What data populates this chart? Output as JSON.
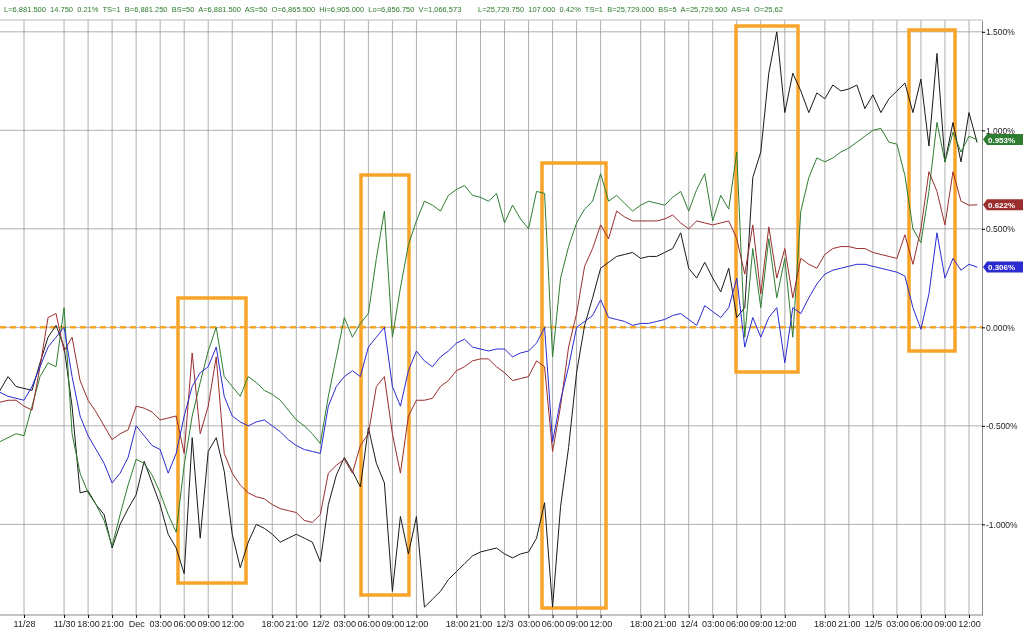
{
  "chart_data": {
    "type": "line",
    "annotations": [
      "L=6,881.500  14.750  0.21%  TS=1  B=6,881.250  BS=50  A=6,881.500  AS=50  O=6,865.500  Hi=6,905.000  Lo=6,856.750  V=1,066,573",
      "L=25,729.750  107.000  0.42%  TS=1  B=25,729.000  BS=5  A=25,729.500  AS=4  O=25,62"
    ],
    "categories": [
      null,
      null,
      null,
      "11/28",
      null,
      null,
      null,
      null,
      "11/30",
      null,
      null,
      "18:00",
      null,
      null,
      "21:00",
      null,
      null,
      "Dec",
      null,
      null,
      "03:00",
      null,
      null,
      "06:00",
      null,
      null,
      "09:00",
      null,
      null,
      "12:00",
      null,
      null,
      null,
      null,
      "18:00",
      null,
      null,
      "21:00",
      null,
      null,
      "12/2",
      null,
      null,
      "03:00",
      null,
      null,
      "06:00",
      null,
      null,
      "09:00",
      null,
      null,
      "12:00",
      null,
      null,
      null,
      null,
      "18:00",
      null,
      null,
      "21:00",
      null,
      null,
      "12/3",
      null,
      null,
      "03:00",
      null,
      null,
      "06:00",
      null,
      null,
      "09:00",
      null,
      null,
      "12:00",
      null,
      null,
      null,
      null,
      "18:00",
      null,
      null,
      "21:00",
      null,
      null,
      "12/4",
      null,
      null,
      "03:00",
      null,
      null,
      "06:00",
      null,
      null,
      "09:00",
      null,
      null,
      "12:00",
      null,
      null,
      null,
      null,
      "18:00",
      null,
      null,
      "21:00",
      null,
      null,
      "12/5",
      null,
      null,
      "03:00",
      null,
      null,
      "06:00",
      null,
      null,
      "09:00",
      null,
      null,
      "12:00",
      null
    ],
    "ylim": [
      -1.46,
      1.56
    ],
    "yticks": [
      {
        "value": 1.5,
        "label": "1.500%"
      },
      {
        "value": 1,
        "label": "1.000%"
      },
      {
        "value": 0.5,
        "label": "0.500%"
      },
      {
        "value": 0,
        "label": "0.000%"
      },
      {
        "value": -0.5,
        "label": "-0.500%"
      },
      {
        "value": -1,
        "label": "-1.000%"
      }
    ],
    "grid": true,
    "ref_lines": [
      {
        "axis": "y",
        "value": 0,
        "color": "#f5a623",
        "line_style": "dashed"
      }
    ],
    "series": [
      {
        "color": "#1a1a1a",
        "values": [
          -0.32,
          -0.25,
          -0.3,
          -0.31,
          -0.32,
          -0.18,
          -0.05,
          0.01,
          -0.1,
          -0.4,
          -0.84,
          -0.83,
          -0.9,
          -0.95,
          -1.12,
          -1.0,
          -0.92,
          -0.85,
          -0.68,
          -0.79,
          -0.9,
          -1.05,
          -1.12,
          -1.25,
          -0.56,
          -1.07,
          -0.63,
          -0.56,
          -0.73,
          -1.05,
          -1.22,
          -1.09,
          -1.0,
          -1.02,
          -1.05,
          -1.09,
          -1.07,
          -1.05,
          -1.07,
          -1.09,
          -1.19,
          -0.9,
          -0.75,
          -0.66,
          -0.73,
          -0.81,
          -0.51,
          -0.69,
          -0.79,
          -1.34,
          -0.96,
          -1.15,
          -0.96,
          -1.42,
          -1.38,
          -1.34,
          -1.28,
          -1.24,
          -1.2,
          -1.16,
          -1.14,
          -1.13,
          -1.12,
          -1.15,
          -1.17,
          -1.15,
          -1.14,
          -1.07,
          -0.89,
          -1.42,
          -0.91,
          -0.61,
          -0.23,
          0.01,
          0.15,
          0.3,
          0.33,
          0.36,
          0.37,
          0.38,
          0.35,
          0.36,
          0.36,
          0.38,
          0.4,
          0.48,
          0.3,
          0.25,
          0.33,
          0.25,
          0.18,
          0.3,
          0.05,
          0.1,
          0.76,
          0.89,
          1.29,
          1.5,
          1.09,
          1.29,
          1.2,
          1.09,
          1.19,
          1.16,
          1.23,
          1.2,
          1.21,
          1.23,
          1.11,
          1.18,
          1.09,
          1.16,
          1.2,
          1.24,
          1.09,
          1.26,
          0.92,
          1.39,
          0.84,
          1.04,
          0.84,
          1.09,
          0.94
        ]
      },
      {
        "color": "#2e7d32",
        "values": [
          -0.58,
          -0.56,
          -0.54,
          -0.55,
          -0.4,
          -0.25,
          -0.18,
          -0.2,
          0.1,
          -0.54,
          -0.74,
          -0.84,
          -0.9,
          -0.98,
          -1.11,
          -0.95,
          -0.8,
          -0.67,
          -0.69,
          -0.75,
          -0.84,
          -0.95,
          -1.04,
          -0.7,
          -0.45,
          -0.28,
          -0.12,
          0.0,
          -0.25,
          -0.3,
          -0.35,
          -0.25,
          -0.28,
          -0.32,
          -0.34,
          -0.37,
          -0.42,
          -0.47,
          -0.5,
          -0.54,
          -0.59,
          -0.35,
          -0.15,
          0.05,
          -0.05,
          0.02,
          0.07,
          0.35,
          0.59,
          -0.05,
          0.2,
          0.42,
          0.54,
          0.64,
          0.62,
          0.59,
          0.67,
          0.7,
          0.72,
          0.67,
          0.66,
          0.64,
          0.68,
          0.53,
          0.62,
          0.55,
          0.5,
          0.69,
          0.68,
          -0.15,
          0.25,
          0.41,
          0.53,
          0.6,
          0.64,
          0.78,
          0.64,
          0.67,
          0.63,
          0.59,
          0.62,
          0.64,
          0.63,
          0.62,
          0.66,
          0.69,
          0.59,
          0.7,
          0.78,
          0.54,
          0.67,
          0.6,
          0.89,
          -0.05,
          0.4,
          0.1,
          0.45,
          0.15,
          0.35,
          -0.05,
          0.59,
          0.76,
          0.86,
          0.84,
          0.86,
          0.89,
          0.91,
          0.94,
          0.97,
          1.0,
          1.01,
          0.94,
          0.93,
          0.77,
          0.5,
          0.43,
          0.69,
          1.04,
          0.84,
          0.99,
          0.89,
          0.97,
          0.953
        ],
        "value_labels": [
          null,
          null,
          null,
          null,
          null,
          null,
          null,
          null,
          null,
          null,
          null,
          null,
          null,
          null,
          null,
          null,
          null,
          null,
          null,
          null,
          null,
          null,
          null,
          null,
          null,
          null,
          null,
          null,
          null,
          null,
          null,
          null,
          null,
          null,
          null,
          null,
          null,
          null,
          null,
          null,
          null,
          null,
          null,
          null,
          null,
          null,
          null,
          null,
          null,
          null,
          null,
          null,
          null,
          null,
          null,
          null,
          null,
          null,
          null,
          null,
          null,
          null,
          null,
          null,
          null,
          null,
          null,
          null,
          null,
          null,
          null,
          null,
          null,
          null,
          null,
          null,
          null,
          null,
          null,
          null,
          null,
          null,
          null,
          null,
          null,
          null,
          null,
          null,
          null,
          null,
          null,
          null,
          null,
          null,
          null,
          null,
          null,
          null,
          null,
          null,
          null,
          null,
          null,
          null,
          null,
          null,
          null,
          null,
          null,
          null,
          null,
          null,
          null,
          null,
          null,
          null,
          null,
          null,
          null,
          null,
          null,
          null,
          "0.953%"
        ]
      },
      {
        "color": "#9b2d2d",
        "values": [
          -0.38,
          -0.37,
          -0.37,
          -0.4,
          -0.42,
          -0.2,
          0.05,
          0.07,
          -0.12,
          -0.05,
          -0.27,
          -0.37,
          -0.43,
          -0.5,
          -0.57,
          -0.54,
          -0.52,
          -0.4,
          -0.41,
          -0.43,
          -0.47,
          -0.46,
          -0.45,
          -0.64,
          -0.13,
          -0.54,
          -0.4,
          -0.15,
          -0.64,
          -0.74,
          -0.8,
          -0.84,
          -0.86,
          -0.87,
          -0.9,
          -0.92,
          -0.93,
          -0.94,
          -0.98,
          -0.99,
          -0.95,
          -0.74,
          -0.7,
          -0.67,
          -0.74,
          -0.6,
          -0.54,
          -0.3,
          -0.25,
          -0.54,
          -0.74,
          -0.45,
          -0.37,
          -0.37,
          -0.36,
          -0.3,
          -0.27,
          -0.22,
          -0.2,
          -0.17,
          -0.16,
          -0.16,
          -0.2,
          -0.23,
          -0.27,
          -0.26,
          -0.25,
          -0.17,
          -0.2,
          -0.63,
          -0.4,
          -0.1,
          0.07,
          0.31,
          0.4,
          0.52,
          0.45,
          0.59,
          0.56,
          0.54,
          0.54,
          0.54,
          0.54,
          0.55,
          0.57,
          0.53,
          0.5,
          0.54,
          0.53,
          0.52,
          0.53,
          0.54,
          0.45,
          0.27,
          0.52,
          0.17,
          0.51,
          0.25,
          0.4,
          0.15,
          0.35,
          0.32,
          0.3,
          0.37,
          0.4,
          0.41,
          0.41,
          0.4,
          0.4,
          0.38,
          0.37,
          0.36,
          0.35,
          0.47,
          0.32,
          0.5,
          0.79,
          0.69,
          0.52,
          0.79,
          0.64,
          0.62,
          0.622
        ],
        "value_labels": [
          null,
          null,
          null,
          null,
          null,
          null,
          null,
          null,
          null,
          null,
          null,
          null,
          null,
          null,
          null,
          null,
          null,
          null,
          null,
          null,
          null,
          null,
          null,
          null,
          null,
          null,
          null,
          null,
          null,
          null,
          null,
          null,
          null,
          null,
          null,
          null,
          null,
          null,
          null,
          null,
          null,
          null,
          null,
          null,
          null,
          null,
          null,
          null,
          null,
          null,
          null,
          null,
          null,
          null,
          null,
          null,
          null,
          null,
          null,
          null,
          null,
          null,
          null,
          null,
          null,
          null,
          null,
          null,
          null,
          null,
          null,
          null,
          null,
          null,
          null,
          null,
          null,
          null,
          null,
          null,
          null,
          null,
          null,
          null,
          null,
          null,
          null,
          null,
          null,
          null,
          null,
          null,
          null,
          null,
          null,
          null,
          null,
          null,
          null,
          null,
          null,
          null,
          null,
          null,
          null,
          null,
          null,
          null,
          null,
          null,
          null,
          null,
          null,
          null,
          null,
          null,
          null,
          null,
          null,
          null,
          null,
          null,
          "0.622%"
        ]
      },
      {
        "color": "#2b2bd0",
        "values": [
          -0.33,
          -0.35,
          -0.36,
          -0.37,
          -0.3,
          -0.2,
          -0.1,
          -0.05,
          0.0,
          -0.25,
          -0.45,
          -0.55,
          -0.62,
          -0.69,
          -0.79,
          -0.74,
          -0.66,
          -0.5,
          -0.55,
          -0.6,
          -0.62,
          -0.74,
          -0.64,
          -0.45,
          -0.3,
          -0.23,
          -0.2,
          -0.1,
          -0.35,
          -0.45,
          -0.48,
          -0.5,
          -0.48,
          -0.47,
          -0.5,
          -0.53,
          -0.57,
          -0.6,
          -0.62,
          -0.63,
          -0.64,
          -0.4,
          -0.3,
          -0.25,
          -0.22,
          -0.25,
          -0.1,
          -0.05,
          0.0,
          -0.3,
          -0.4,
          -0.22,
          -0.12,
          -0.17,
          -0.2,
          -0.15,
          -0.12,
          -0.08,
          -0.06,
          -0.1,
          -0.11,
          -0.12,
          -0.11,
          -0.11,
          -0.15,
          -0.13,
          -0.12,
          -0.08,
          0.0,
          -0.58,
          -0.37,
          -0.2,
          0.0,
          0.03,
          0.06,
          0.14,
          0.05,
          0.04,
          0.03,
          0.01,
          0.02,
          0.02,
          0.03,
          0.04,
          0.06,
          0.07,
          0.04,
          0.01,
          0.11,
          0.08,
          0.05,
          0.1,
          0.25,
          -0.1,
          0.05,
          -0.05,
          0.05,
          0.1,
          -0.18,
          0.1,
          0.07,
          0.15,
          0.22,
          0.27,
          0.29,
          0.3,
          0.31,
          0.32,
          0.32,
          0.31,
          0.3,
          0.29,
          0.28,
          0.26,
          0.1,
          -0.01,
          0.17,
          0.48,
          0.25,
          0.35,
          0.29,
          0.32,
          0.306
        ],
        "value_labels": [
          null,
          null,
          null,
          null,
          null,
          null,
          null,
          null,
          null,
          null,
          null,
          null,
          null,
          null,
          null,
          null,
          null,
          null,
          null,
          null,
          null,
          null,
          null,
          null,
          null,
          null,
          null,
          null,
          null,
          null,
          null,
          null,
          null,
          null,
          null,
          null,
          null,
          null,
          null,
          null,
          null,
          null,
          null,
          null,
          null,
          null,
          null,
          null,
          null,
          null,
          null,
          null,
          null,
          null,
          null,
          null,
          null,
          null,
          null,
          null,
          null,
          null,
          null,
          null,
          null,
          null,
          null,
          null,
          null,
          null,
          null,
          null,
          null,
          null,
          null,
          null,
          null,
          null,
          null,
          null,
          null,
          null,
          null,
          null,
          null,
          null,
          null,
          null,
          null,
          null,
          null,
          null,
          null,
          null,
          null,
          null,
          null,
          null,
          null,
          null,
          null,
          null,
          null,
          null,
          null,
          null,
          null,
          null,
          null,
          null,
          null,
          null,
          null,
          null,
          null,
          null,
          null,
          null,
          null,
          null,
          null,
          null,
          "0.306%"
        ]
      }
    ]
  }
}
